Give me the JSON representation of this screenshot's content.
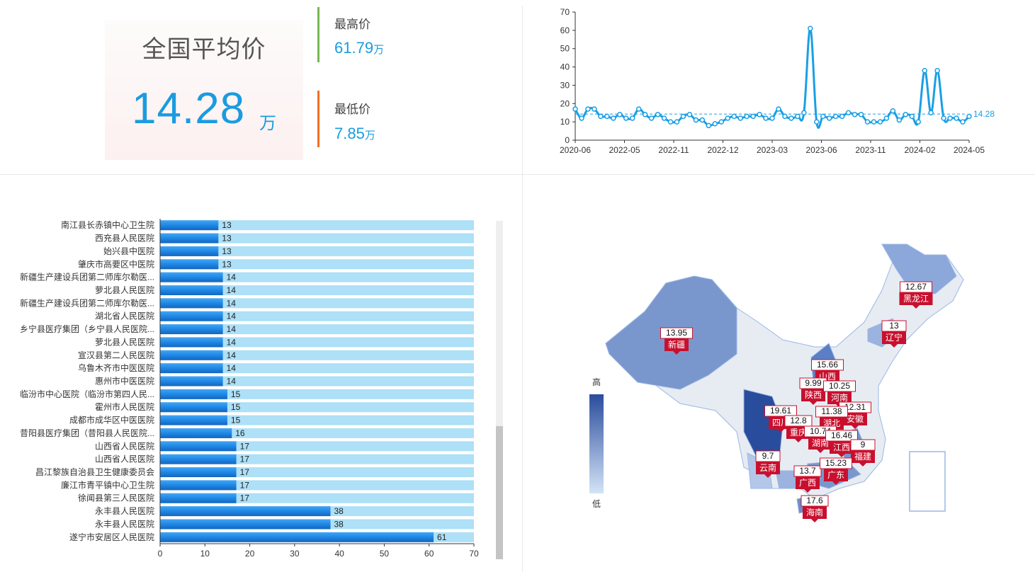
{
  "summary": {
    "avg_title": "全国平均价",
    "avg_value": "14.28",
    "avg_unit": "万",
    "max_label": "最高价",
    "max_value": "61.79",
    "max_unit": "万",
    "min_label": "最低价",
    "min_value": "7.85",
    "min_unit": "万",
    "max_color": "#76b852",
    "min_color": "#f37021"
  },
  "chart_data": [
    {
      "type": "line",
      "x_ticks": [
        "2020-06",
        "2022-05",
        "2022-11",
        "2022-12",
        "2023-03",
        "2023-06",
        "2023-11",
        "2024-02",
        "2024-05"
      ],
      "ylim": [
        0,
        70
      ],
      "y_ticks": [
        0,
        10,
        20,
        30,
        40,
        50,
        60,
        70
      ],
      "average_line": {
        "value": 14.28,
        "label": "14.28"
      },
      "values": [
        17,
        12,
        17,
        17,
        13,
        13,
        12,
        14,
        12,
        12,
        17,
        14,
        12,
        14,
        12,
        10,
        10,
        13,
        14,
        11,
        11,
        8,
        9,
        10,
        12,
        13,
        12,
        13,
        13,
        14,
        12,
        12,
        17,
        13,
        12,
        13,
        15,
        61,
        10,
        13,
        12,
        13,
        13,
        15,
        14,
        14,
        10,
        10,
        10,
        12,
        16,
        11,
        14,
        13,
        10,
        38,
        15,
        38,
        12,
        12,
        12,
        10,
        13
      ],
      "color": "#1a9fe5"
    },
    {
      "type": "bar",
      "orientation": "horizontal",
      "categories": [
        "南江县长赤镇中心卫生院",
        "西充县人民医院",
        "始兴县中医院",
        "肇庆市高要区中医院",
        "新疆生产建设兵团第二师库尔勒医...",
        "萝北县人民医院",
        "新疆生产建设兵团第二师库尔勒医...",
        "湖北省人民医院",
        "乡宁县医疗集团（乡宁县人民医院...",
        "萝北县人民医院",
        "宣汉县第二人民医院",
        "乌鲁木齐市中医医院",
        "惠州市中医医院",
        "临汾市中心医院（临汾市第四人民...",
        "霍州市人民医院",
        "成都市成华区中医医院",
        "昔阳县医疗集团（昔阳县人民医院...",
        "山西省人民医院",
        "山西省人民医院",
        "昌江黎族自治县卫生健康委员会",
        "廉江市青平镇中心卫生院",
        "徐闻县第三人民医院",
        "永丰县人民医院",
        "永丰县人民医院",
        "遂宁市安居区人民医院"
      ],
      "values": [
        13,
        13,
        13,
        13,
        14,
        14,
        14,
        14,
        14,
        14,
        14,
        14,
        14,
        15,
        15,
        15,
        16,
        17,
        17,
        17,
        17,
        17,
        38,
        38,
        61
      ],
      "xlim": [
        0,
        70
      ],
      "x_ticks": [
        0,
        10,
        20,
        30,
        40,
        50,
        60,
        70
      ],
      "bar_color": "#1e88e5",
      "background_color": "#aee0f7"
    },
    {
      "type": "map",
      "legend": {
        "high": "高",
        "low": "低"
      },
      "regions": [
        {
          "name": "黑龙江",
          "value": "12.67"
        },
        {
          "name": "辽宁",
          "value": "13"
        },
        {
          "name": "新疆",
          "value": "13.95"
        },
        {
          "name": "山西",
          "value": "15.66"
        },
        {
          "name": "陕西",
          "value": "9.99"
        },
        {
          "name": "河南",
          "value": "10.25"
        },
        {
          "name": "安徽",
          "value": "12.31"
        },
        {
          "name": "四川",
          "value": "19.61"
        },
        {
          "name": "重庆",
          "value": "12.8"
        },
        {
          "name": "湖北",
          "value": "11.38"
        },
        {
          "name": "湖南",
          "value": "10.74"
        },
        {
          "name": "江西",
          "value": "16.46"
        },
        {
          "name": "福建",
          "value": "9"
        },
        {
          "name": "云南",
          "value": "9.7"
        },
        {
          "name": "广西",
          "value": "13.7"
        },
        {
          "name": "广东",
          "value": "15.23"
        },
        {
          "name": "海南",
          "value": "17.6"
        }
      ]
    }
  ]
}
